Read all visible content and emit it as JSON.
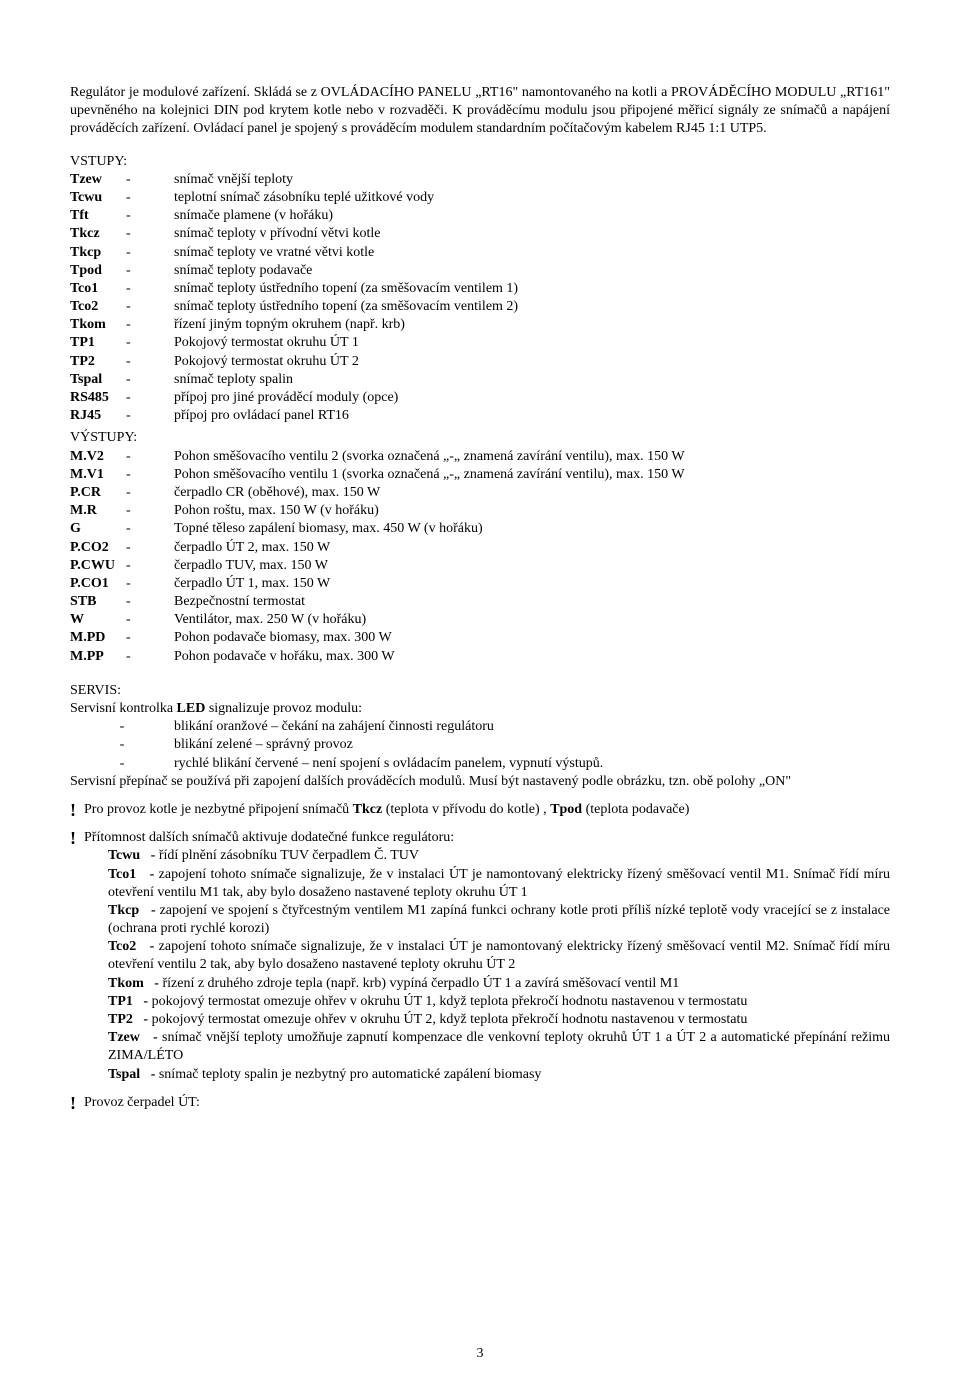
{
  "intro": "Regulátor je modulové zařízení. Skládá se z OVLÁDACÍHO PANELU „RT16\" namontovaného na kotli a PROVÁDĚCÍHO MODULU „RT161\" upevněného na kolejnici DIN pod krytem kotle nebo v rozvaděči. K prováděcímu modulu jsou připojené měřicí signály ze snímačů a napájení prováděcích zařízení. Ovládací panel je spojený s prováděcím modulem standardním počítačovým kabelem RJ45 1:1 UTP5.",
  "inputs_label": "VSTUPY:",
  "outputs_label": "VÝSTUPY:",
  "inputs": [
    {
      "lbl": "Tzew",
      "dash": "-",
      "desc": "snímač vnější teploty"
    },
    {
      "lbl": "Tcwu",
      "dash": "-",
      "desc": "teplotní snímač zásobníku teplé užitkové vody"
    },
    {
      "lbl": "Tft",
      "dash": "-",
      "desc": "snímače plamene (v hořáku)"
    },
    {
      "lbl": "Tkcz",
      "dash": "-",
      "desc": "snímač teploty v přívodní větvi kotle"
    },
    {
      "lbl": "Tkcp",
      "dash": "-",
      "desc": "snímač teploty ve vratné větvi kotle"
    },
    {
      "lbl": "Tpod",
      "dash": "-",
      "desc": "snímač teploty podavače"
    },
    {
      "lbl": "Tco1",
      "dash": "-",
      "desc": "snímač teploty ústředního topení (za směšovacím ventilem 1)"
    },
    {
      "lbl": "Tco2",
      "dash": "-",
      "desc": "snímač teploty ústředního topení (za směšovacím ventilem 2)"
    },
    {
      "lbl": "Tkom",
      "dash": "-",
      "desc": "řízení jiným topným okruhem (např. krb)"
    },
    {
      "lbl": "TP1",
      "dash": "-",
      "desc": "Pokojový termostat okruhu ÚT 1"
    },
    {
      "lbl": "TP2",
      "dash": "-",
      "desc": "Pokojový termostat okruhu ÚT 2"
    },
    {
      "lbl": "Tspal",
      "dash": "-",
      "desc": "snímač teploty spalin"
    },
    {
      "lbl": "RS485",
      "dash": "-",
      "desc": "přípoj pro jiné prováděcí moduly (opce)"
    },
    {
      "lbl": "RJ45",
      "dash": "-",
      "desc": "přípoj pro ovládací panel RT16"
    }
  ],
  "outputs": [
    {
      "lbl": "M.V2",
      "dash": "-",
      "desc": "Pohon směšovacího ventilu 2 (svorka označená „-„ znamená zavírání ventilu), max. 150 W"
    },
    {
      "lbl": "M.V1",
      "dash": "-",
      "desc": "Pohon směšovacího ventilu 1 (svorka označená „-„ znamená zavírání ventilu), max. 150 W"
    },
    {
      "lbl": "P.CR",
      "dash": "-",
      "desc": "čerpadlo CR (oběhové), max. 150 W"
    },
    {
      "lbl": "M.R",
      "dash": "-",
      "desc": "Pohon roštu, max. 150 W (v hořáku)"
    },
    {
      "lbl": "G",
      "dash": "-",
      "desc": "Topné těleso zapálení biomasy, max. 450 W (v hořáku)"
    },
    {
      "lbl": "P.CO2",
      "dash": "-",
      "desc": "čerpadlo ÚT 2, max. 150 W"
    },
    {
      "lbl": "P.CWU",
      "dash": "-",
      "desc": "čerpadlo TUV, max. 150 W"
    },
    {
      "lbl": "P.CO1",
      "dash": "-",
      "desc": "čerpadlo ÚT 1, max. 150 W"
    },
    {
      "lbl": "STB",
      "dash": "-",
      "desc": "Bezpečnostní termostat"
    },
    {
      "lbl": "W",
      "dash": "-",
      "desc": "Ventilátor, max. 250 W (v hořáku)"
    },
    {
      "lbl": "M.PD",
      "dash": "-",
      "desc": "Pohon podavače biomasy, max. 300 W"
    },
    {
      "lbl": "M.PP",
      "dash": "-",
      "desc": "Pohon podavače v hořáku, max. 300 W"
    }
  ],
  "servis": {
    "label": "SERVIS:",
    "line1_a": "Servisní kontrolka ",
    "line1_b": "LED",
    "line1_c": " signalizuje provoz modulu:",
    "bullets": [
      "blikání oranžové – čekání na zahájení činnosti regulátoru",
      "blikání zelené – správný provoz",
      "rychlé blikání červené – není spojení s ovládacím panelem, vypnutí výstupů."
    ],
    "line2": "Servisní přepínač se používá při zapojení dalších prováděcích modulů. Musí být nastavený podle obrázku, tzn. obě polohy „ON\""
  },
  "warn1_a": "Pro provoz kotle je nezbytné připojení snímačů ",
  "warn1_b": "Tkcz",
  "warn1_c": " (teplota v přívodu do kotle) , ",
  "warn1_d": "Tpod",
  "warn1_e": " (teplota podavače)",
  "warn2": "Přítomnost dalších snímačů aktivuje dodatečné funkce regulátoru:",
  "sensors": [
    {
      "lbl": "Tcwu",
      "txt": "řídí plnění zásobníku TUV čerpadlem Č. TUV"
    },
    {
      "lbl": "Tco1",
      "txt": "zapojení tohoto snímače signalizuje, že v instalaci ÚT je namontovaný  elektricky řízený směšovací ventil M1. Snímač řídí míru otevření ventilu M1 tak, aby bylo dosaženo nastavené teploty okruhu ÚT 1"
    },
    {
      "lbl": "Tkcp",
      "txt": "zapojení ve spojení s čtyřcestným ventilem M1 zapíná funkci ochrany kotle proti příliš nízké teplotě vody vracející se z instalace (ochrana proti rychlé korozi)"
    },
    {
      "lbl": "Tco2",
      "txt": "zapojení tohoto snímače signalizuje, že v instalaci ÚT je namontovaný elektricky řízený směšovací ventil M2. Snímač řídí míru otevření ventilu 2 tak, aby bylo dosaženo nastavené teploty okruhu ÚT 2"
    },
    {
      "lbl": "Tkom",
      "txt": "řízení z druhého zdroje tepla (např. krb) vypíná čerpadlo ÚT 1 a zavírá směšovací ventil M1"
    },
    {
      "lbl": "TP1",
      "txt": "pokojový termostat omezuje ohřev v okruhu ÚT 1, když teplota překročí hodnotu nastavenou v termostatu"
    },
    {
      "lbl": "TP2",
      "txt": "pokojový termostat omezuje ohřev v okruhu ÚT 2, když teplota překročí hodnotu nastavenou v termostatu"
    },
    {
      "lbl": "Tzew",
      "txt": "snímač vnější teploty umožňuje zapnutí kompenzace dle venkovní teploty okruhů ÚT 1 a ÚT 2 a automatické přepínání režimu ZIMA/LÉTO"
    },
    {
      "lbl": "Tspal",
      "txt": "snímač teploty spalin je nezbytný pro automatické zapálení biomasy"
    }
  ],
  "warn3": "Provoz čerpadel ÚT:",
  "page_num": "3"
}
